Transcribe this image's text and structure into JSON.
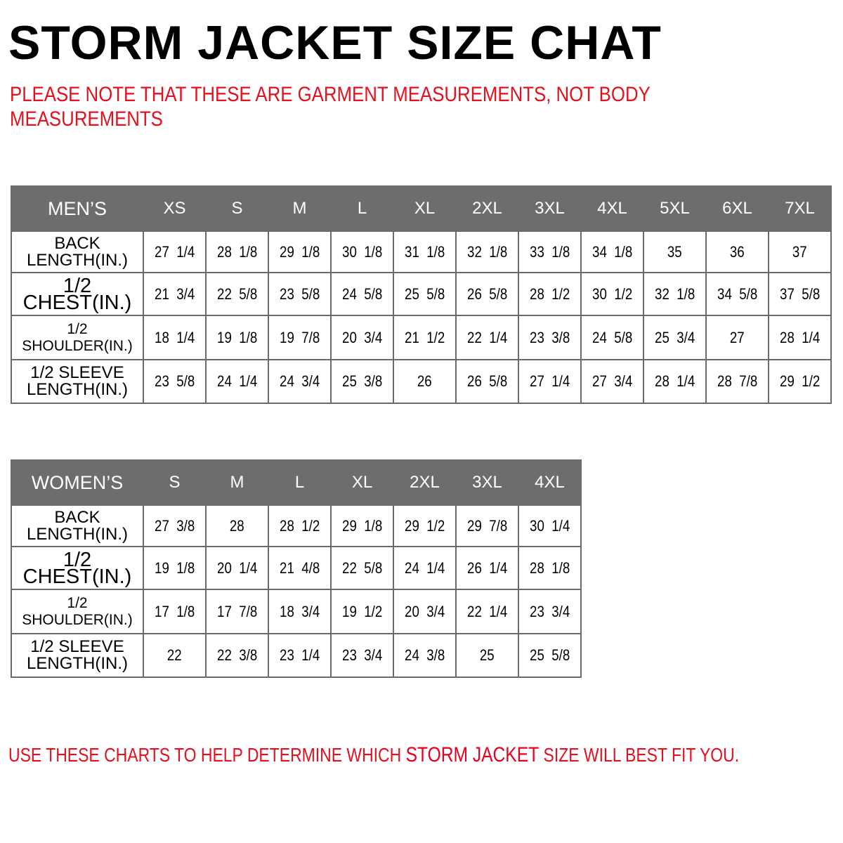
{
  "title": "STORM JACKET SIZE CHAT",
  "note": "PLEASE NOTE THAT THESE ARE GARMENT MEASUREMENTS, NOT BODY MEASUREMENTS",
  "colors": {
    "accent_red": "#e4101e",
    "header_gray": "#6d6d6d"
  },
  "row_labels": [
    "BACK LENGTH(IN.)",
    "1/2 CHEST(IN.)",
    "1/2 SHOULDER(IN.)",
    "1/2 SLEEVE LENGTH(IN.)"
  ],
  "mens": {
    "label": "MEN’S",
    "sizes": [
      "XS",
      "S",
      "M",
      "L",
      "XL",
      "2XL",
      "3XL",
      "4XL",
      "5XL",
      "6XL",
      "7XL"
    ],
    "rows": [
      [
        "27  1/4",
        "28  1/8",
        "29  1/8",
        "30  1/8",
        "31  1/8",
        "32  1/8",
        "33  1/8",
        "34  1/8",
        "35",
        "36",
        "37"
      ],
      [
        "21  3/4",
        "22  5/8",
        "23  5/8",
        "24  5/8",
        "25  5/8",
        "26  5/8",
        "28  1/2",
        "30  1/2",
        "32  1/8",
        "34  5/8",
        "37  5/8"
      ],
      [
        "18  1/4",
        "19  1/8",
        "19  7/8",
        "20  3/4",
        "21  1/2",
        "22  1/4",
        "23  3/8",
        "24  5/8",
        "25  3/4",
        "27",
        "28  1/4"
      ],
      [
        "23  5/8",
        "24  1/4",
        "24  3/4",
        "25  3/8",
        "26",
        "26  5/8",
        "27  1/4",
        "27  3/4",
        "28  1/4",
        "28  7/8",
        "29  1/2"
      ]
    ]
  },
  "womens": {
    "label": "WOMEN’S",
    "sizes": [
      "S",
      "M",
      "L",
      "XL",
      "2XL",
      "3XL",
      "4XL"
    ],
    "rows": [
      [
        "27  3/8",
        "28",
        "28  1/2",
        "29  1/8",
        "29  1/2",
        "29  7/8",
        "30  1/4"
      ],
      [
        "19  1/8",
        "20  1/4",
        "21  4/8",
        "22  5/8",
        "24  1/4",
        "26  1/4",
        "28  1/8"
      ],
      [
        "17  1/8",
        "17  7/8",
        "18  3/4",
        "19  1/2",
        "20  3/4",
        "22  1/4",
        "23  3/4"
      ],
      [
        "22",
        "22  3/8",
        "23  1/4",
        "23  3/4",
        "24  3/8",
        "25",
        "25  5/8"
      ]
    ]
  },
  "footer": {
    "part1": "USE THESE CHARTS TO HELP DETERMINE WHICH ",
    "highlight": "STORM JACKET",
    "part2": "  SIZE WILL BEST FIT YOU."
  }
}
